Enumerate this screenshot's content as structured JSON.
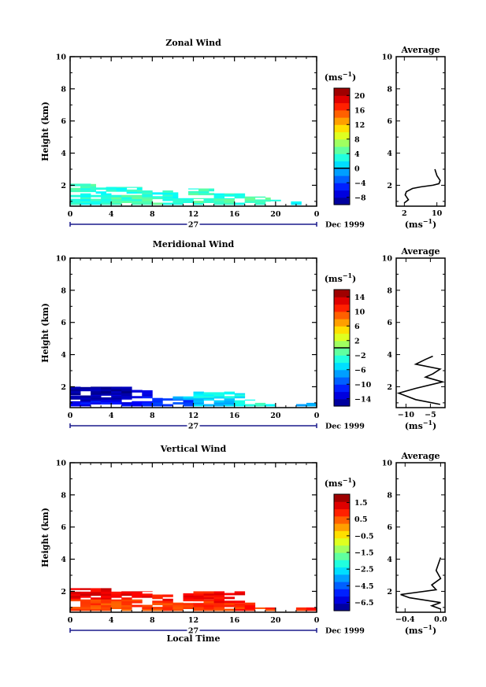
{
  "chart_data": [
    {
      "type": "heatmap",
      "title": "Zonal Wind",
      "ylabel": "Height (km)",
      "xlabel": "",
      "x_ticks": [
        "0",
        "4",
        "8",
        "12",
        "16",
        "20",
        "0"
      ],
      "xlim": [
        0,
        24
      ],
      "y_ticks": [
        "2",
        "4",
        "6",
        "8",
        "10"
      ],
      "ylim": [
        0.7,
        10
      ],
      "day_label": "27",
      "date_label": "Dec 1999",
      "colorbar": {
        "unit_base": "(ms",
        "unit_exp": "−1",
        "ticks": [
          "−8",
          "−4",
          "0",
          "4",
          "8",
          "12",
          "16",
          "20"
        ],
        "range": [
          -10,
          22
        ],
        "zero_line": 0
      },
      "cells": [
        [
          0,
          2.5,
          1.6,
          2.1,
          4
        ],
        [
          2.5,
          7,
          1.5,
          1.9,
          3
        ],
        [
          7,
          10.5,
          1.2,
          1.7,
          3
        ],
        [
          11.5,
          14,
          1.4,
          1.8,
          4
        ],
        [
          14,
          17,
          1.2,
          1.5,
          3
        ],
        [
          17,
          19.5,
          1.0,
          1.3,
          5
        ],
        [
          0,
          4,
          0.8,
          1.5,
          3
        ],
        [
          4,
          9,
          0.8,
          1.4,
          4
        ],
        [
          9,
          12,
          0.8,
          1.2,
          3
        ],
        [
          12,
          16,
          0.8,
          1.2,
          4
        ],
        [
          16,
          19,
          0.8,
          1.0,
          3
        ],
        [
          19.5,
          21,
          0.9,
          1.1,
          4
        ],
        [
          21.5,
          22.5,
          0.8,
          1.0,
          2
        ]
      ],
      "average_profile": {
        "title": "Average",
        "x_ticks": [
          "2",
          "10"
        ],
        "xlim": [
          0,
          12
        ],
        "y_ticks": [
          "2",
          "4",
          "6",
          "8",
          "10"
        ],
        "xlabel_base": "(ms",
        "xlabel_exp": "−1",
        "points": [
          [
            2,
            0.9
          ],
          [
            3,
            1.1
          ],
          [
            2.2,
            1.4
          ],
          [
            2.5,
            1.6
          ],
          [
            4,
            1.8
          ],
          [
            6,
            1.9
          ],
          [
            9,
            2.0
          ],
          [
            10.5,
            2.1
          ],
          [
            10.8,
            2.3
          ],
          [
            10,
            2.6
          ],
          [
            9.5,
            3.0
          ]
        ]
      }
    },
    {
      "type": "heatmap",
      "title": "Meridional Wind",
      "ylabel": "Height (km)",
      "xlabel": "",
      "x_ticks": [
        "0",
        "4",
        "8",
        "12",
        "16",
        "20",
        "0"
      ],
      "xlim": [
        0,
        24
      ],
      "y_ticks": [
        "2",
        "4",
        "6",
        "8",
        "10"
      ],
      "ylim": [
        0.7,
        10
      ],
      "day_label": "27",
      "date_label": "Dec 1999",
      "colorbar": {
        "unit_base": "(ms",
        "unit_exp": "−1",
        "ticks": [
          "−14",
          "−10",
          "−6",
          "−2",
          "2",
          "6",
          "10",
          "14"
        ],
        "range": [
          -16,
          16
        ],
        "zero_line": 0
      },
      "cells": [
        [
          0,
          6,
          1.5,
          2.0,
          -15
        ],
        [
          0,
          6,
          1.1,
          1.5,
          -14
        ],
        [
          6,
          8,
          1.3,
          1.8,
          -12
        ],
        [
          8,
          12,
          0.8,
          1.3,
          -10
        ],
        [
          0,
          8,
          0.8,
          1.1,
          -12
        ],
        [
          10,
          12,
          1.2,
          1.4,
          -6
        ],
        [
          12,
          16,
          1.3,
          1.7,
          -4
        ],
        [
          12,
          16,
          0.8,
          1.3,
          -6
        ],
        [
          16,
          17,
          1.3,
          1.6,
          -4
        ],
        [
          16,
          18,
          0.8,
          1.2,
          -4
        ],
        [
          18,
          20,
          0.8,
          1.0,
          -3
        ],
        [
          22,
          24,
          0.8,
          1.0,
          -6
        ]
      ],
      "average_profile": {
        "title": "Average",
        "x_ticks": [
          "−10",
          "−5"
        ],
        "xlim": [
          -12,
          -2
        ],
        "y_ticks": [
          "2",
          "4",
          "6",
          "8",
          "10"
        ],
        "xlabel_base": "(ms",
        "xlabel_exp": "−1",
        "points": [
          [
            -3,
            0.9
          ],
          [
            -8,
            1.2
          ],
          [
            -11.5,
            1.6
          ],
          [
            -8,
            1.9
          ],
          [
            -2.5,
            2.3
          ],
          [
            -6,
            2.6
          ],
          [
            -4.5,
            2.8
          ],
          [
            -3,
            3.1
          ],
          [
            -8,
            3.4
          ],
          [
            -6,
            3.7
          ],
          [
            -4.5,
            3.9
          ]
        ]
      }
    },
    {
      "type": "heatmap",
      "title": "Vertical Wind",
      "ylabel": "Height (km)",
      "xlabel": "Local Time",
      "x_ticks": [
        "0",
        "4",
        "8",
        "12",
        "16",
        "20",
        "0"
      ],
      "xlim": [
        0,
        24
      ],
      "y_ticks": [
        "2",
        "4",
        "6",
        "8",
        "10"
      ],
      "ylim": [
        0.7,
        10
      ],
      "day_label": "27",
      "date_label": "Dec 1999",
      "colorbar": {
        "unit_base": "(ms",
        "unit_exp": "−1",
        "ticks": [
          "−6.5",
          "−4.5",
          "−2.5",
          "−1.5",
          "−0.5",
          "0.5",
          "1.5"
        ],
        "range": [
          -7,
          2
        ],
        "zero_line": null
      },
      "cells": [
        [
          0,
          4,
          1.5,
          2.2,
          1.1
        ],
        [
          4,
          8,
          1.5,
          2.0,
          1.0
        ],
        [
          8,
          10,
          1.3,
          1.8,
          0.8
        ],
        [
          0,
          8,
          0.8,
          1.5,
          0.3
        ],
        [
          8,
          12,
          0.8,
          1.3,
          0.2
        ],
        [
          11,
          14,
          1.4,
          2.0,
          0.8
        ],
        [
          12,
          16,
          0.8,
          1.5,
          0.4
        ],
        [
          14,
          17,
          1.3,
          2.0,
          0.9
        ],
        [
          16,
          18,
          0.8,
          1.3,
          0.5
        ],
        [
          18,
          20,
          0.8,
          1.0,
          0.3
        ],
        [
          22,
          24,
          0.8,
          1.0,
          0.5
        ]
      ],
      "average_profile": {
        "title": "Average",
        "x_ticks": [
          "−0.4",
          "0.0"
        ],
        "xlim": [
          -0.5,
          0.05
        ],
        "y_ticks": [
          "2",
          "4",
          "6",
          "8",
          "10"
        ],
        "xlabel_base": "(ms",
        "xlabel_exp": "−1",
        "points": [
          [
            0.0,
            0.9
          ],
          [
            -0.1,
            1.1
          ],
          [
            0.0,
            1.3
          ],
          [
            -0.35,
            1.6
          ],
          [
            -0.45,
            1.8
          ],
          [
            -0.05,
            2.1
          ],
          [
            -0.1,
            2.4
          ],
          [
            0.0,
            2.8
          ],
          [
            -0.05,
            3.3
          ],
          [
            0.0,
            4.1
          ]
        ]
      }
    }
  ]
}
